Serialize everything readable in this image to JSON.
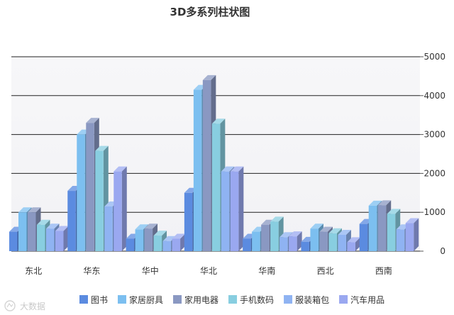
{
  "chart_data": {
    "type": "bar",
    "title": "3D多系列柱状图",
    "categories": [
      "东北",
      "华东",
      "华中",
      "华北",
      "华南",
      "西北",
      "西南"
    ],
    "series": [
      {
        "name": "图书",
        "color": "#5b8be0",
        "values": [
          500,
          1550,
          320,
          1500,
          320,
          240,
          700
        ]
      },
      {
        "name": "家居厨具",
        "color": "#7cbff0",
        "values": [
          1000,
          3000,
          560,
          4150,
          500,
          580,
          1170
        ]
      },
      {
        "name": "家用电器",
        "color": "#8a98c2",
        "values": [
          1000,
          3300,
          580,
          4400,
          680,
          500,
          1180
        ]
      },
      {
        "name": "手机数码",
        "color": "#88cee0",
        "values": [
          680,
          2580,
          400,
          3280,
          760,
          460,
          960
        ]
      },
      {
        "name": "服装箱包",
        "color": "#8fb3f2",
        "values": [
          580,
          1150,
          260,
          2050,
          360,
          420,
          560
        ]
      },
      {
        "name": "汽车用品",
        "color": "#9aa8f0",
        "values": [
          520,
          2050,
          320,
          2050,
          380,
          230,
          720
        ]
      }
    ],
    "yticks": [
      0,
      1000,
      2000,
      3000,
      4000,
      5000
    ],
    "ylim": [
      0,
      5000
    ],
    "grid": true,
    "legend_position": "bottom",
    "watermark": "大数据"
  }
}
